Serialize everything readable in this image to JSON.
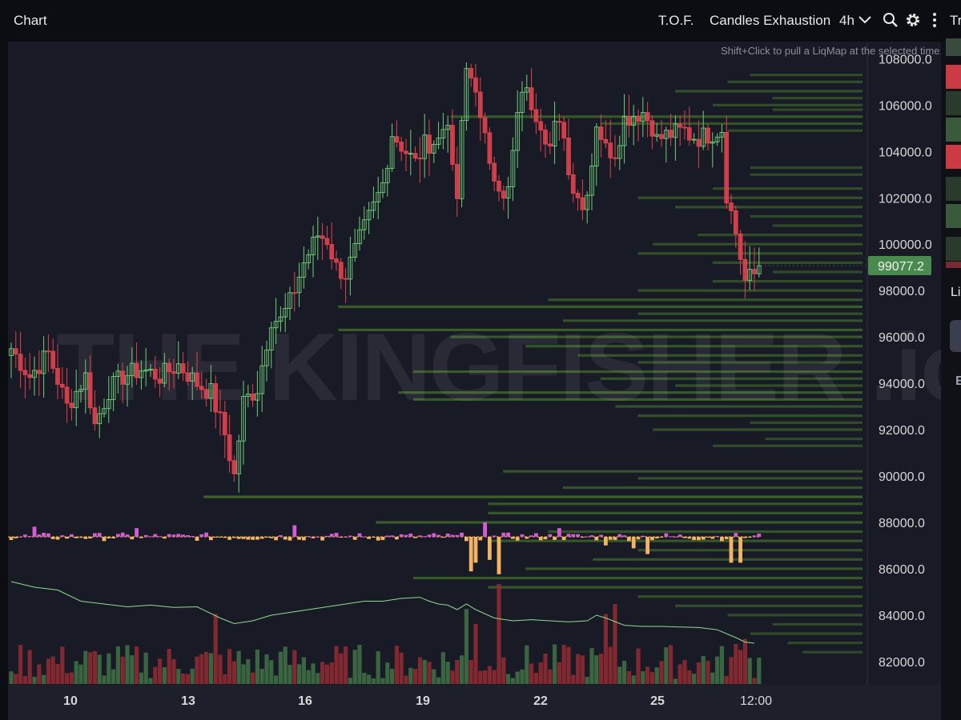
{
  "header": {
    "title": "Chart",
    "indicator_tof": "T.O.F.",
    "indicator_exhaustion": "Candles Exhaustion",
    "timeframe": "4h",
    "right_cut_text": "Tr"
  },
  "hint_text": "Shift+Click to pull a LiqMap at the selected time.",
  "watermark": "THE KINGFISHER .io",
  "right_panel": {
    "label_li": "Li",
    "label_e": "E"
  },
  "colors": {
    "background": "#181a25",
    "bull": "#6fcf7a",
    "bear": "#e0434f",
    "liq": "#3f6b2a",
    "price_tag": "#4a8a4e",
    "delta_pos": "#d65bd6",
    "delta_neg": "#f2b464"
  },
  "chart_data": {
    "type": "candlestick",
    "timeframe": "4h",
    "x_ticks": [
      "10",
      "13",
      "16",
      "19",
      "22",
      "25",
      "12:00"
    ],
    "y_ticks": [
      82000,
      84000,
      86000,
      88000,
      90000,
      92000,
      94000,
      96000,
      98000,
      100000,
      102000,
      104000,
      106000,
      108000
    ],
    "y_tick_labels": [
      "82000.0",
      "84000.0",
      "86000.0",
      "88000.0",
      "90000.0",
      "92000.0",
      "94000.0",
      "96000.0",
      "98000.0",
      "100000.0",
      "102000.0",
      "104000.0",
      "106000.0",
      "108000.0"
    ],
    "ylim": [
      81200,
      108600
    ],
    "last_price": 99077.2,
    "last_price_label": "99077.2",
    "candle_path": [
      [
        0,
        95500
      ],
      [
        4,
        94300
      ],
      [
        8,
        95300
      ],
      [
        12,
        93000
      ],
      [
        16,
        94300
      ],
      [
        18,
        92200
      ],
      [
        21,
        93700
      ],
      [
        24,
        94300
      ],
      [
        28,
        94600
      ],
      [
        32,
        94300
      ],
      [
        36,
        94800
      ],
      [
        40,
        94000
      ],
      [
        43,
        93600
      ],
      [
        46,
        91800
      ],
      [
        48,
        90000
      ],
      [
        50,
        93200
      ],
      [
        53,
        93800
      ],
      [
        56,
        96800
      ],
      [
        58,
        96700
      ],
      [
        60,
        97500
      ],
      [
        63,
        99200
      ],
      [
        66,
        100400
      ],
      [
        68,
        100200
      ],
      [
        70,
        99000
      ],
      [
        72,
        98700
      ],
      [
        75,
        100200
      ],
      [
        78,
        101600
      ],
      [
        80,
        102600
      ],
      [
        82,
        104800
      ],
      [
        85,
        104000
      ],
      [
        87,
        103500
      ],
      [
        89,
        104300
      ],
      [
        92,
        104500
      ],
      [
        94,
        105500
      ],
      [
        95,
        103000
      ],
      [
        96,
        102000
      ],
      [
        97,
        105000
      ],
      [
        98,
        107500
      ],
      [
        100,
        106900
      ],
      [
        101,
        105200
      ],
      [
        103,
        103700
      ],
      [
        105,
        102600
      ],
      [
        106,
        101800
      ],
      [
        107,
        102300
      ],
      [
        108,
        103900
      ],
      [
        110,
        106800
      ],
      [
        112,
        106100
      ],
      [
        114,
        105300
      ],
      [
        116,
        104200
      ],
      [
        117,
        105000
      ],
      [
        119,
        104900
      ],
      [
        120,
        103000
      ],
      [
        122,
        102200
      ],
      [
        123,
        101500
      ],
      [
        125,
        103500
      ],
      [
        126,
        105300
      ],
      [
        128,
        104100
      ],
      [
        130,
        104000
      ],
      [
        132,
        105400
      ],
      [
        134,
        105600
      ],
      [
        136,
        105700
      ],
      [
        138,
        105100
      ],
      [
        139,
        104500
      ],
      [
        141,
        104700
      ],
      [
        143,
        104800
      ],
      [
        145,
        104900
      ],
      [
        146,
        104700
      ],
      [
        148,
        104600
      ],
      [
        151,
        104800
      ],
      [
        153,
        105000
      ],
      [
        154,
        102200
      ],
      [
        156,
        100500
      ],
      [
        158,
        98400
      ],
      [
        160,
        98700
      ],
      [
        161,
        99077
      ]
    ],
    "liquidation_levels": [
      {
        "price": 107300,
        "strength": 0.15
      },
      {
        "price": 107000,
        "strength": 0.18
      },
      {
        "price": 106600,
        "strength": 0.25
      },
      {
        "price": 106300,
        "strength": 0.12
      },
      {
        "price": 106000,
        "strength": 0.2
      },
      {
        "price": 105800,
        "strength": 0.12
      },
      {
        "price": 105500,
        "strength": 0.55
      },
      {
        "price": 105200,
        "strength": 0.35
      },
      {
        "price": 104900,
        "strength": 0.18
      },
      {
        "price": 103300,
        "strength": 0.15
      },
      {
        "price": 103000,
        "strength": 0.15
      },
      {
        "price": 102400,
        "strength": 0.2
      },
      {
        "price": 102000,
        "strength": 0.3
      },
      {
        "price": 101600,
        "strength": 0.25
      },
      {
        "price": 101200,
        "strength": 0.15
      },
      {
        "price": 100800,
        "strength": 0.12
      },
      {
        "price": 100400,
        "strength": 0.22
      },
      {
        "price": 100000,
        "strength": 0.28
      },
      {
        "price": 99600,
        "strength": 0.3
      },
      {
        "price": 99200,
        "strength": 0.2
      },
      {
        "price": 98800,
        "strength": 0.12
      },
      {
        "price": 98400,
        "strength": 0.2
      },
      {
        "price": 98000,
        "strength": 0.3
      },
      {
        "price": 97600,
        "strength": 0.42
      },
      {
        "price": 97300,
        "strength": 0.7
      },
      {
        "price": 97000,
        "strength": 0.3
      },
      {
        "price": 96700,
        "strength": 0.4
      },
      {
        "price": 96300,
        "strength": 0.7
      },
      {
        "price": 96000,
        "strength": 0.55
      },
      {
        "price": 95600,
        "strength": 0.45
      },
      {
        "price": 95200,
        "strength": 0.38
      },
      {
        "price": 94900,
        "strength": 0.3
      },
      {
        "price": 94500,
        "strength": 0.6
      },
      {
        "price": 94200,
        "strength": 0.35
      },
      {
        "price": 93900,
        "strength": 0.25
      },
      {
        "price": 93600,
        "strength": 0.62
      },
      {
        "price": 93300,
        "strength": 0.6
      },
      {
        "price": 93000,
        "strength": 0.33
      },
      {
        "price": 92600,
        "strength": 0.3
      },
      {
        "price": 92300,
        "strength": 0.15
      },
      {
        "price": 92000,
        "strength": 0.28
      },
      {
        "price": 91600,
        "strength": 0.13
      },
      {
        "price": 91300,
        "strength": 0.2
      },
      {
        "price": 90200,
        "strength": 0.48
      },
      {
        "price": 89900,
        "strength": 0.3
      },
      {
        "price": 89500,
        "strength": 0.4
      },
      {
        "price": 89100,
        "strength": 0.88
      },
      {
        "price": 88800,
        "strength": 0.5
      },
      {
        "price": 88400,
        "strength": 0.5
      },
      {
        "price": 88000,
        "strength": 0.65
      },
      {
        "price": 87600,
        "strength": 0.42
      },
      {
        "price": 87200,
        "strength": 0.5
      },
      {
        "price": 86800,
        "strength": 0.3
      },
      {
        "price": 86400,
        "strength": 0.36
      },
      {
        "price": 86000,
        "strength": 0.45
      },
      {
        "price": 85600,
        "strength": 0.6
      },
      {
        "price": 85200,
        "strength": 0.5
      },
      {
        "price": 84800,
        "strength": 0.3
      },
      {
        "price": 84400,
        "strength": 0.25
      },
      {
        "price": 84000,
        "strength": 0.18
      },
      {
        "price": 83600,
        "strength": 0.12
      },
      {
        "price": 83200,
        "strength": 0.15
      },
      {
        "price": 82800,
        "strength": 0.1
      },
      {
        "price": 82400,
        "strength": 0.08
      }
    ],
    "oi_line": [
      [
        0,
        0.9
      ],
      [
        5,
        0.8
      ],
      [
        10,
        0.75
      ],
      [
        15,
        0.55
      ],
      [
        20,
        0.5
      ],
      [
        25,
        0.45
      ],
      [
        30,
        0.48
      ],
      [
        35,
        0.44
      ],
      [
        40,
        0.45
      ],
      [
        45,
        0.25
      ],
      [
        48,
        0.15
      ],
      [
        52,
        0.2
      ],
      [
        56,
        0.3
      ],
      [
        60,
        0.35
      ],
      [
        64,
        0.4
      ],
      [
        68,
        0.45
      ],
      [
        72,
        0.5
      ],
      [
        76,
        0.55
      ],
      [
        80,
        0.55
      ],
      [
        84,
        0.6
      ],
      [
        88,
        0.62
      ],
      [
        90,
        0.55
      ],
      [
        92,
        0.5
      ],
      [
        94,
        0.48
      ],
      [
        96,
        0.4
      ],
      [
        98,
        0.5
      ],
      [
        100,
        0.4
      ],
      [
        104,
        0.25
      ],
      [
        108,
        0.2
      ],
      [
        112,
        0.22
      ],
      [
        116,
        0.2
      ],
      [
        120,
        0.18
      ],
      [
        124,
        0.2
      ],
      [
        126,
        0.3
      ],
      [
        128,
        0.25
      ],
      [
        132,
        0.12
      ],
      [
        136,
        0.1
      ],
      [
        140,
        0.1
      ],
      [
        144,
        0.09
      ],
      [
        148,
        0.08
      ],
      [
        152,
        0.04
      ],
      [
        156,
        -0.1
      ],
      [
        158,
        -0.18
      ],
      [
        160,
        -0.2
      ]
    ],
    "delta_spikes": [
      {
        "i": 99,
        "v": -1.2
      },
      {
        "i": 100,
        "v": -0.9
      },
      {
        "i": 103,
        "v": -0.8
      },
      {
        "i": 105,
        "v": -1.3
      },
      {
        "i": 128,
        "v": -0.3
      },
      {
        "i": 134,
        "v": -0.4
      },
      {
        "i": 137,
        "v": -0.6
      },
      {
        "i": 155,
        "v": -0.9
      },
      {
        "i": 157,
        "v": -0.9
      },
      {
        "i": 102,
        "v": 0.5
      },
      {
        "i": 61,
        "v": 0.4
      },
      {
        "i": 5,
        "v": 0.35
      },
      {
        "i": 27,
        "v": 0.3
      },
      {
        "i": 118,
        "v": 0.3
      }
    ],
    "volume_spikes": [
      {
        "i": 44,
        "v": 0.7
      },
      {
        "i": 98,
        "v": 0.75
      },
      {
        "i": 100,
        "v": 0.6
      },
      {
        "i": 105,
        "v": 1.0
      },
      {
        "i": 128,
        "v": 0.7
      },
      {
        "i": 130,
        "v": 0.8
      },
      {
        "i": 156,
        "v": 0.4
      },
      {
        "i": 158,
        "v": 0.45
      }
    ]
  }
}
